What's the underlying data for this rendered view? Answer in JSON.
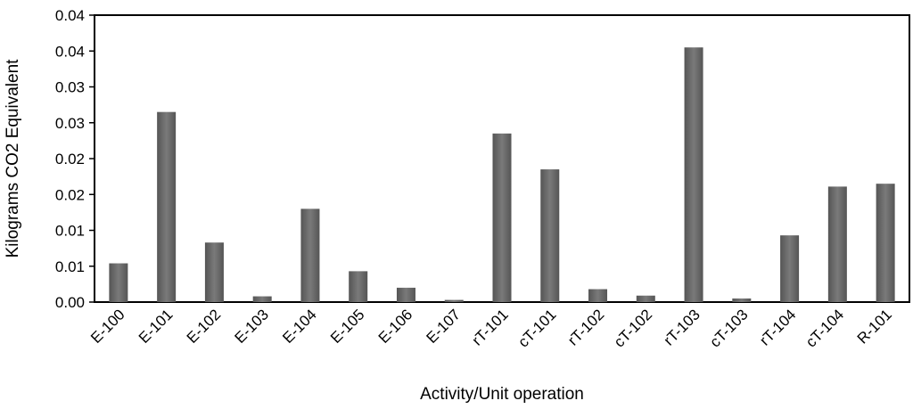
{
  "chart_data": {
    "type": "bar",
    "xlabel": "Activity/Unit operation",
    "ylabel": "Kilograms CO2 Equivalent",
    "ylim": [
      0,
      0.04
    ],
    "ytick_labels": [
      "0.00",
      "0.01",
      "0.01",
      "0.02",
      "0.02",
      "0.03",
      "0.03",
      "0.04",
      "0.04"
    ],
    "categories": [
      "E-100",
      "E-101",
      "E-102",
      "E-103",
      "E-104",
      "E-105",
      "E-106",
      "E-107",
      "rT-101",
      "cT-101",
      "rT-102",
      "cT-102",
      "rT-103",
      "cT-103",
      "rT-104",
      "cT-104",
      "R-101"
    ],
    "values": [
      0.0054,
      0.0265,
      0.0083,
      0.0008,
      0.013,
      0.0043,
      0.002,
      0.0003,
      0.0235,
      0.0185,
      0.0018,
      0.0009,
      0.0355,
      0.0005,
      0.0093,
      0.0161,
      0.0165
    ],
    "grid": false,
    "legend": "none",
    "bar_color": "#666666"
  }
}
